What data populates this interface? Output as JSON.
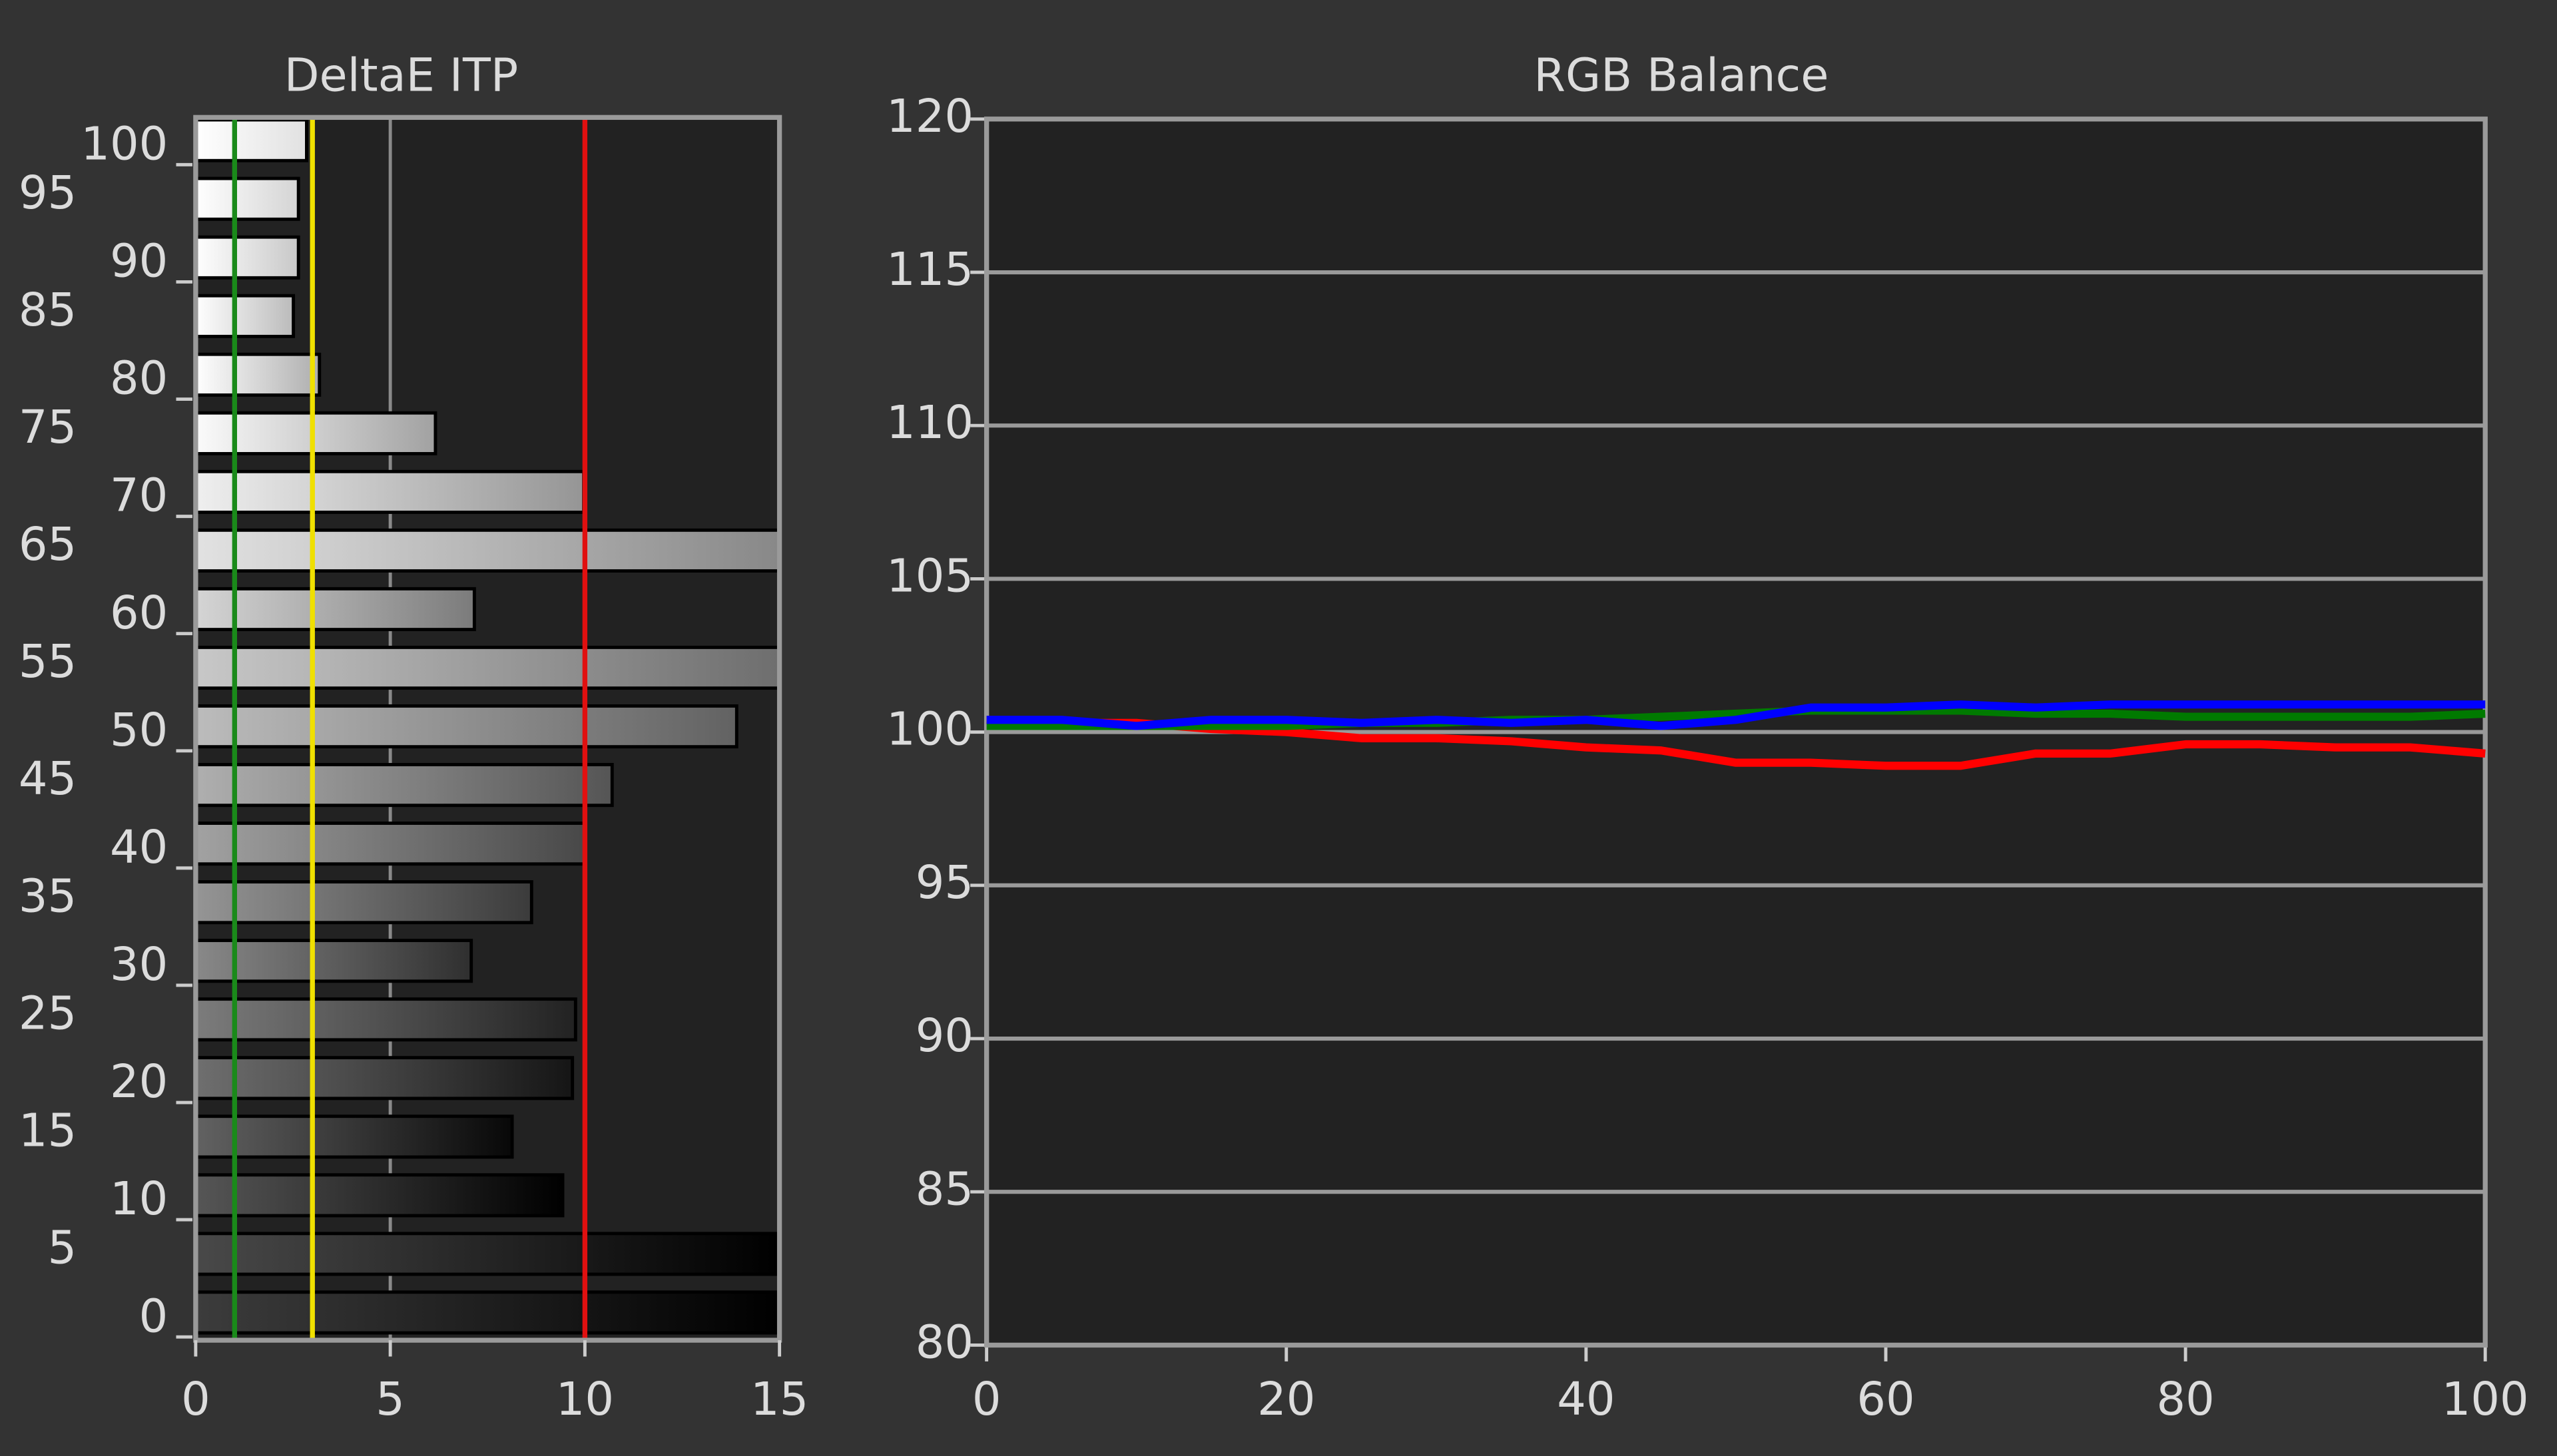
{
  "chart_data": [
    {
      "type": "bar",
      "orientation": "horizontal",
      "title": "DeltaE ITP",
      "categories": [
        "0",
        "5",
        "10",
        "15",
        "20",
        "25",
        "30",
        "35",
        "40",
        "45",
        "50",
        "55",
        "60",
        "65",
        "70",
        "75",
        "80",
        "85",
        "90",
        "95",
        "100"
      ],
      "values": [
        15,
        15,
        9.43,
        8.13,
        9.68,
        9.76,
        7.08,
        8.63,
        10.0,
        10.7,
        13.9,
        15,
        7.16,
        15,
        9.97,
        6.16,
        3.18,
        2.51,
        2.64,
        2.64,
        2.85
      ],
      "xlim": [
        0,
        15
      ],
      "xticks": [
        0,
        5,
        10,
        15
      ],
      "grid": true,
      "reference_lines": [
        {
          "value": 1,
          "color": "#1a8a1a"
        },
        {
          "value": 3,
          "color": "#f0e000"
        },
        {
          "value": 10,
          "color": "#e01010"
        }
      ]
    },
    {
      "type": "line",
      "title": "RGB Balance",
      "x": [
        0,
        5,
        10,
        15,
        20,
        25,
        30,
        35,
        40,
        45,
        50,
        55,
        60,
        65,
        70,
        75,
        80,
        85,
        90,
        95,
        100
      ],
      "series": [
        {
          "name": "Red",
          "color": "#ff0000",
          "values": [
            100.4,
            100.3,
            100.3,
            100.1,
            100.0,
            99.8,
            99.8,
            99.7,
            99.5,
            99.4,
            99.0,
            99.0,
            98.9,
            98.9,
            99.3,
            99.3,
            99.6,
            99.6,
            99.5,
            99.5,
            99.3
          ]
        },
        {
          "name": "Green",
          "color": "#007a00",
          "values": [
            100.2,
            100.2,
            100.2,
            100.2,
            100.2,
            100.3,
            100.3,
            100.4,
            100.4,
            100.5,
            100.6,
            100.7,
            100.7,
            100.7,
            100.6,
            100.6,
            100.5,
            100.5,
            100.5,
            100.5,
            100.6
          ]
        },
        {
          "name": "Blue",
          "color": "#0000ff",
          "values": [
            100.4,
            100.4,
            100.2,
            100.4,
            100.4,
            100.3,
            100.4,
            100.3,
            100.4,
            100.2,
            100.4,
            100.8,
            100.8,
            100.9,
            100.8,
            100.9,
            100.9,
            100.9,
            100.9,
            100.9,
            100.9
          ]
        }
      ],
      "xlim": [
        0,
        100
      ],
      "xticks": [
        0,
        20,
        40,
        60,
        80,
        100
      ],
      "ylim": [
        80,
        120
      ],
      "yticks": [
        80,
        85,
        90,
        95,
        100,
        105,
        110,
        115,
        120
      ],
      "grid": true
    }
  ]
}
